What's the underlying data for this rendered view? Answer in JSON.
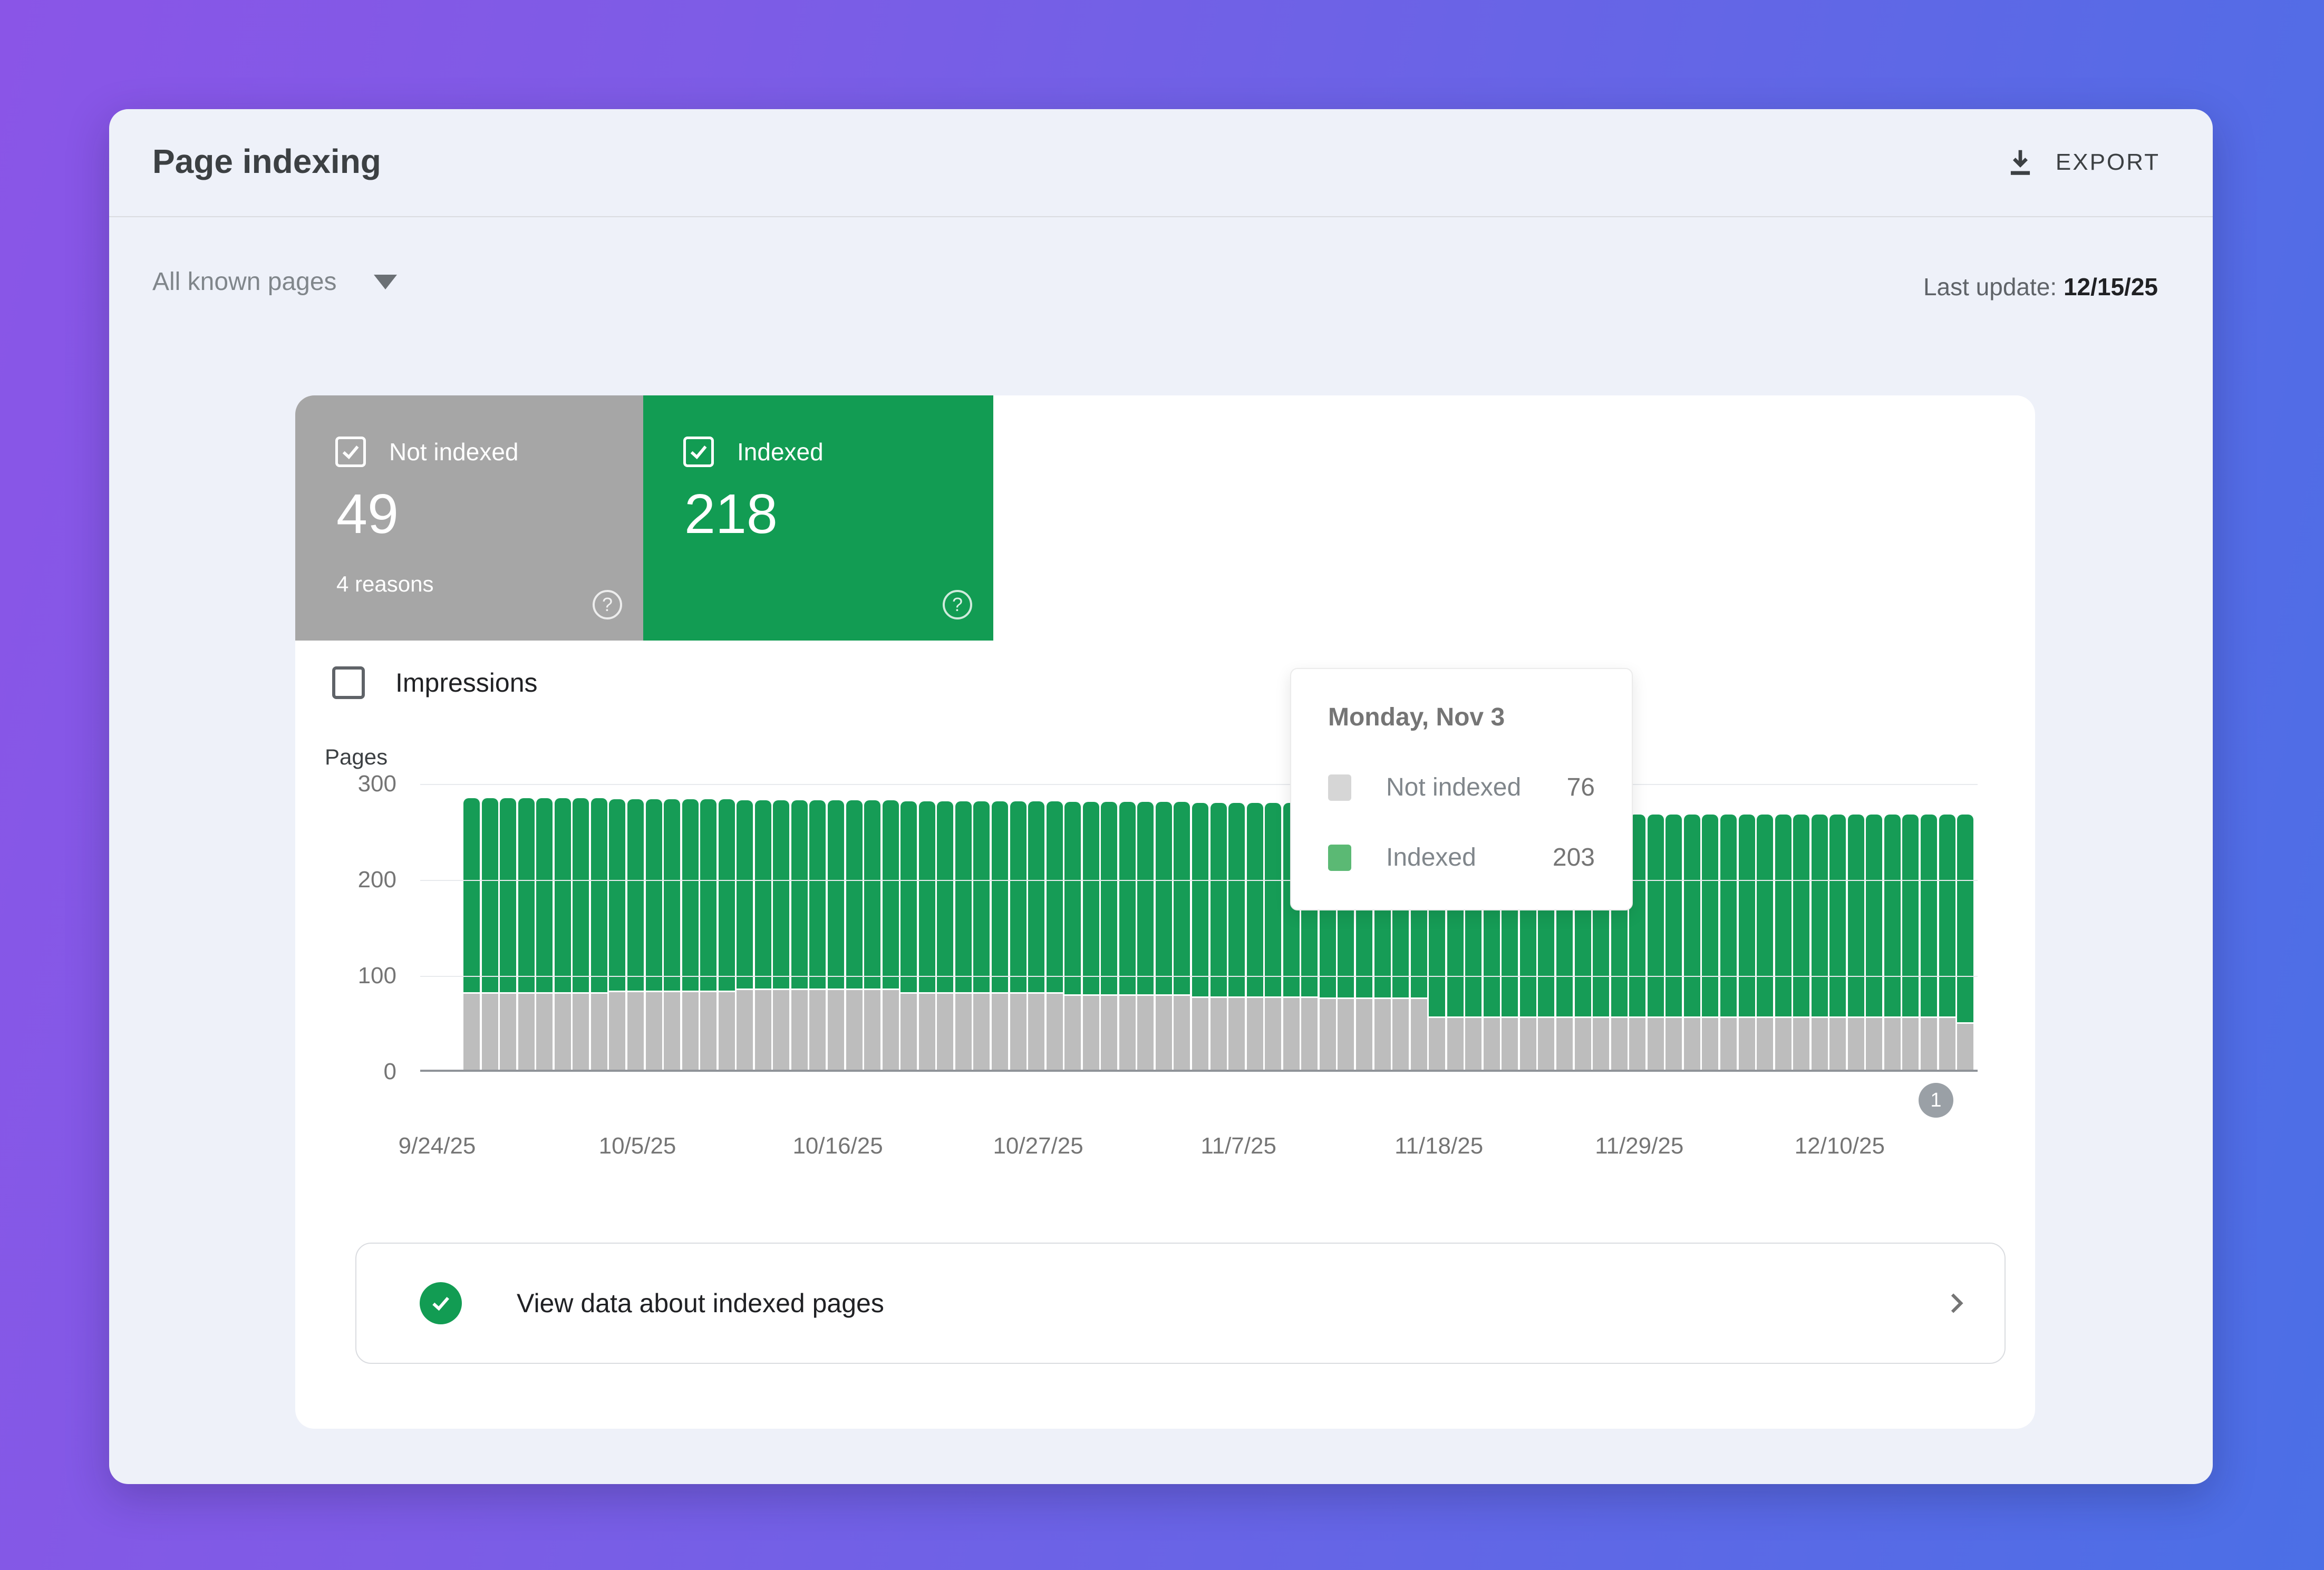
{
  "header": {
    "title": "Page indexing",
    "export_label": "EXPORT"
  },
  "filter_bar": {
    "scope_label": "All known pages",
    "last_update_label": "Last update:",
    "last_update_value": "12/15/25"
  },
  "summary_cards": [
    {
      "id": "not-indexed",
      "label": "Not indexed",
      "value": "49",
      "sub": "4 reasons",
      "checked": true,
      "color": "#a6a6a6"
    },
    {
      "id": "indexed",
      "label": "Indexed",
      "value": "218",
      "sub": "",
      "checked": true,
      "color": "#129c53"
    }
  ],
  "impressions_toggle": {
    "label": "Impressions",
    "checked": false
  },
  "tooltip": {
    "title": "Monday, Nov 3",
    "rows": [
      {
        "label": "Not indexed",
        "value": "76",
        "swatch": "#d6d6d6"
      },
      {
        "label": "Indexed",
        "value": "203",
        "swatch": "#5bb974"
      }
    ]
  },
  "pagination": {
    "badge": "1"
  },
  "footer_link": {
    "label": "View data about indexed pages"
  },
  "colors": {
    "bar_green": "#169c56",
    "bar_gray": "#bdbdbd",
    "accent_green": "#129c53",
    "chip_gray": "#a6a6a6",
    "badge_gray": "#9aa0a6"
  },
  "chart_data": {
    "type": "bar",
    "stacked": true,
    "title": "",
    "xlabel": "",
    "ylabel": "Pages",
    "ylim": [
      0,
      300
    ],
    "yticks": [
      0,
      100,
      200,
      300
    ],
    "grid": true,
    "legend_position": "tooltip-only",
    "xtick_labels": [
      "9/24/25",
      "10/5/25",
      "10/16/25",
      "10/27/25",
      "11/7/25",
      "11/18/25",
      "11/29/25",
      "12/10/25"
    ],
    "xtick_positions": [
      0,
      11,
      22,
      33,
      44,
      55,
      66,
      77
    ],
    "x": [
      "9/24/25",
      "9/25/25",
      "9/26/25",
      "9/27/25",
      "9/28/25",
      "9/29/25",
      "9/30/25",
      "10/1/25",
      "10/2/25",
      "10/3/25",
      "10/4/25",
      "10/5/25",
      "10/6/25",
      "10/7/25",
      "10/8/25",
      "10/9/25",
      "10/10/25",
      "10/11/25",
      "10/12/25",
      "10/13/25",
      "10/14/25",
      "10/15/25",
      "10/16/25",
      "10/17/25",
      "10/18/25",
      "10/19/25",
      "10/20/25",
      "10/21/25",
      "10/22/25",
      "10/23/25",
      "10/24/25",
      "10/25/25",
      "10/26/25",
      "10/27/25",
      "10/28/25",
      "10/29/25",
      "10/30/25",
      "10/31/25",
      "11/1/25",
      "11/2/25",
      "11/3/25",
      "11/4/25",
      "11/5/25",
      "11/6/25",
      "11/7/25",
      "11/8/25",
      "11/9/25",
      "11/10/25",
      "11/11/25",
      "11/12/25",
      "11/13/25",
      "11/14/25",
      "11/15/25",
      "11/16/25",
      "11/17/25",
      "11/18/25",
      "11/19/25",
      "11/20/25",
      "11/21/25",
      "11/22/25",
      "11/23/25",
      "11/24/25",
      "11/25/25",
      "11/26/25",
      "11/27/25",
      "11/28/25",
      "11/29/25",
      "11/30/25",
      "12/1/25",
      "12/2/25",
      "12/3/25",
      "12/4/25",
      "12/5/25",
      "12/6/25",
      "12/7/25",
      "12/8/25",
      "12/9/25",
      "12/10/25",
      "12/11/25",
      "12/12/25",
      "12/13/25",
      "12/14/25",
      "12/15/25"
    ],
    "series": [
      {
        "name": "Not indexed",
        "color": "#bdbdbd",
        "values": [
          80,
          80,
          80,
          80,
          80,
          80,
          80,
          80,
          82,
          82,
          82,
          82,
          82,
          82,
          82,
          84,
          84,
          84,
          84,
          84,
          84,
          84,
          84,
          84,
          80,
          80,
          80,
          80,
          80,
          80,
          80,
          80,
          80,
          78,
          78,
          78,
          78,
          78,
          78,
          78,
          76,
          76,
          76,
          76,
          76,
          76,
          76,
          75,
          75,
          75,
          75,
          75,
          75,
          55,
          55,
          55,
          55,
          55,
          55,
          55,
          55,
          55,
          55,
          55,
          55,
          55,
          55,
          55,
          55,
          55,
          55,
          55,
          55,
          55,
          55,
          55,
          55,
          55,
          55,
          55,
          55,
          55,
          49
        ]
      },
      {
        "name": "Indexed",
        "color": "#169c56",
        "values": [
          204,
          204,
          204,
          204,
          204,
          204,
          204,
          204,
          201,
          201,
          201,
          201,
          201,
          201,
          201,
          198,
          198,
          198,
          198,
          198,
          198,
          198,
          198,
          198,
          201,
          201,
          201,
          201,
          201,
          201,
          201,
          201,
          201,
          202,
          202,
          202,
          202,
          202,
          202,
          202,
          203,
          203,
          203,
          203,
          203,
          203,
          203,
          201,
          201,
          201,
          201,
          201,
          201,
          212,
          212,
          212,
          212,
          212,
          212,
          212,
          212,
          212,
          212,
          212,
          212,
          212,
          212,
          212,
          212,
          212,
          212,
          212,
          212,
          212,
          212,
          212,
          212,
          212,
          212,
          212,
          212,
          212,
          218
        ]
      }
    ]
  }
}
